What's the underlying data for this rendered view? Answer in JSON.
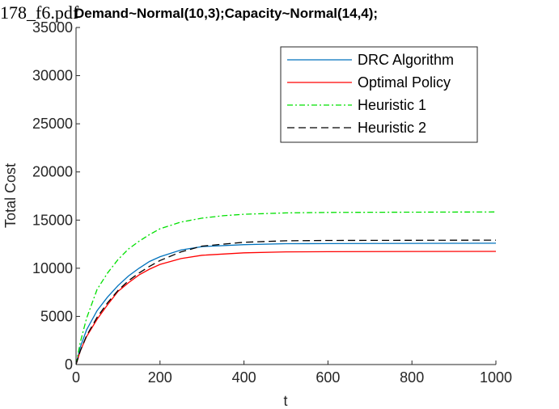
{
  "overlay_text": "178_f6.pdf",
  "chart_data": {
    "type": "line",
    "title": "Demand~Normal(10,3);Capacity~Normal(14,4);",
    "xlabel": "t",
    "ylabel": "Total Cost",
    "xlim": [
      0,
      1000
    ],
    "ylim": [
      0,
      35000
    ],
    "xticks": [
      0,
      200,
      400,
      600,
      800,
      1000
    ],
    "yticks": [
      0,
      5000,
      10000,
      15000,
      20000,
      25000,
      30000,
      35000
    ],
    "grid": false,
    "legend_position": "top-right",
    "series": [
      {
        "name": "DRC Algorithm",
        "color": "#0072BD",
        "dash": "solid",
        "x": [
          0,
          10,
          25,
          50,
          75,
          100,
          125,
          150,
          175,
          200,
          250,
          300,
          400,
          500,
          600,
          800,
          1000
        ],
        "y": [
          0,
          1800,
          3600,
          5600,
          7000,
          8200,
          9200,
          10000,
          10700,
          11200,
          11900,
          12250,
          12450,
          12550,
          12560,
          12580,
          12600
        ]
      },
      {
        "name": "Optimal Policy",
        "color": "#FF0000",
        "dash": "solid",
        "x": [
          0,
          10,
          25,
          50,
          75,
          100,
          125,
          150,
          175,
          200,
          250,
          300,
          400,
          500,
          600,
          800,
          1000
        ],
        "y": [
          0,
          1400,
          2900,
          4700,
          6200,
          7600,
          8500,
          9300,
          9900,
          10400,
          11000,
          11350,
          11600,
          11700,
          11720,
          11740,
          11750
        ]
      },
      {
        "name": "Heuristic 1",
        "color": "#00E000",
        "dash": "dashdot",
        "x": [
          0,
          10,
          25,
          50,
          75,
          100,
          125,
          150,
          175,
          200,
          250,
          300,
          350,
          400,
          500,
          600,
          800,
          1000
        ],
        "y": [
          0,
          2300,
          4800,
          7800,
          9500,
          10900,
          12000,
          12800,
          13500,
          14100,
          14800,
          15200,
          15450,
          15600,
          15750,
          15800,
          15820,
          15850
        ]
      },
      {
        "name": "Heuristic 2",
        "color": "#000000",
        "dash": "dashed",
        "x": [
          0,
          10,
          25,
          50,
          75,
          100,
          125,
          150,
          175,
          200,
          250,
          300,
          400,
          500,
          600,
          800,
          1000
        ],
        "y": [
          0,
          1400,
          3000,
          4900,
          6400,
          7700,
          8700,
          9500,
          10200,
          10800,
          11700,
          12300,
          12700,
          12850,
          12880,
          12900,
          12920
        ]
      }
    ]
  }
}
